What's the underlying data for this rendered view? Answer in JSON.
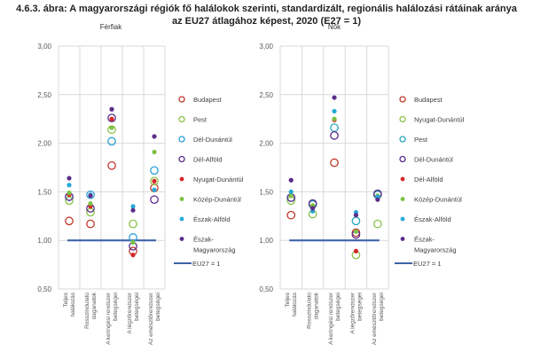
{
  "figure": {
    "title_line1": "4.6.3. ábra: A magyarországi régiók fő halálokok szerinti, standardizált, regionális halálozási rátáinak aránya",
    "title_line2": "az EU27 átlagához képest, 2020 (E27 = 1)"
  },
  "chart_data": [
    {
      "type": "scatter",
      "title": "Férfiak",
      "xlabel": "",
      "ylabel": "",
      "ylim": [
        0.5,
        3.0
      ],
      "yticks": [
        "0,50",
        "1,00",
        "1,50",
        "2,00",
        "2,50",
        "3,00"
      ],
      "ytick_values": [
        0.5,
        1.0,
        1.5,
        2.0,
        2.5,
        3.0
      ],
      "grid": true,
      "legend_position": "right",
      "categories": [
        "Teljes halálozás",
        "Rosszindulatú daganatok",
        "A keringési rendszer betegségei",
        "A légzőrendszer betegségei",
        "Az emésztőrendszer betegségei"
      ],
      "category_lines": [
        [
          "Teljes",
          "halálozás"
        ],
        [
          "Rosszindulatú",
          "daganatok"
        ],
        [
          "A keringési rendszer",
          "betegségei"
        ],
        [
          "A légzőrendszer",
          "betegségei"
        ],
        [
          "Az emésztőrendszer",
          "betegségei"
        ]
      ],
      "series": [
        {
          "name": "Budapest",
          "marker": "open",
          "color": "#c0392b",
          "values": [
            1.2,
            1.17,
            1.77,
            0.89,
            1.54
          ]
        },
        {
          "name": "Pest",
          "marker": "open",
          "color": "#8bc34a",
          "values": [
            1.41,
            1.29,
            2.14,
            1.17,
            1.61
          ]
        },
        {
          "name": "Dél-Dunántúl",
          "marker": "open",
          "color": "#2a9fd6",
          "values": [
            1.45,
            1.47,
            2.02,
            1.03,
            1.72
          ]
        },
        {
          "name": "Dél-Alföld",
          "marker": "open",
          "color": "#5b2d8a",
          "values": [
            1.45,
            1.33,
            2.26,
            0.94,
            1.42
          ]
        },
        {
          "name": "Nyugat-Dunántúl",
          "marker": "filled",
          "color": "#d62728",
          "values": [
            1.47,
            1.35,
            2.25,
            0.85,
            1.61
          ]
        },
        {
          "name": "Közép-Dunántúl",
          "marker": "filled",
          "color": "#7cc242",
          "values": [
            1.49,
            1.38,
            2.16,
            0.98,
            1.91
          ]
        },
        {
          "name": "Észak-Alföld",
          "marker": "filled",
          "color": "#27a9d8",
          "values": [
            1.57,
            1.47,
            null,
            1.35,
            1.52
          ]
        },
        {
          "name": "Észak-Magyarország",
          "marker": "filled",
          "color": "#5b2d8a",
          "values": [
            1.64,
            1.46,
            2.35,
            1.31,
            2.07
          ]
        }
      ],
      "reference_line": {
        "name": "EU27 = 1",
        "value": 1.0,
        "color": "#3e64a8"
      }
    },
    {
      "type": "scatter",
      "title": "Nők",
      "xlabel": "",
      "ylabel": "",
      "ylim": [
        0.5,
        3.0
      ],
      "yticks": [
        "0,50",
        "1,00",
        "1,50",
        "2,00",
        "2,50",
        "3,00"
      ],
      "ytick_values": [
        0.5,
        1.0,
        1.5,
        2.0,
        2.5,
        3.0
      ],
      "grid": true,
      "legend_position": "right",
      "categories": [
        "Teljes halálozás",
        "Rosszindulatú daganatok",
        "A keringési rendszer betegségei",
        "A légzőrendszer betegségei",
        "Az emésztőrendszer betegségei"
      ],
      "category_lines": [
        [
          "Teljes",
          "halálozás"
        ],
        [
          "Rosszindulatú",
          "daganatok"
        ],
        [
          "A keringési rendszer",
          "betegségei"
        ],
        [
          "A légzőrendszer",
          "betegségei"
        ],
        [
          "Az emésztőrendszer",
          "betegségei"
        ]
      ],
      "series": [
        {
          "name": "Budapest",
          "marker": "open",
          "color": "#c0392b",
          "values": [
            1.26,
            1.37,
            1.8,
            1.08,
            1.47
          ]
        },
        {
          "name": "Nyugat-Dunántúl",
          "marker": "open",
          "color": "#8bc34a",
          "values": [
            1.41,
            1.27,
            null,
            0.85,
            1.17
          ]
        },
        {
          "name": "Pest",
          "marker": "open",
          "color": "#26a6b8",
          "values": [
            1.44,
            1.37,
            2.16,
            1.2,
            1.47
          ]
        },
        {
          "name": "Dél-Dunántúl",
          "marker": "open",
          "color": "#5b2d8a",
          "values": [
            1.44,
            1.38,
            2.08,
            1.06,
            1.48
          ]
        },
        {
          "name": "Dél-Alföld",
          "marker": "filled",
          "color": "#d62728",
          "values": [
            1.46,
            1.34,
            2.24,
            0.89,
            1.45
          ]
        },
        {
          "name": "Közép-Dunántúl",
          "marker": "filled",
          "color": "#7cc242",
          "values": [
            1.46,
            1.36,
            2.25,
            1.09,
            1.46
          ]
        },
        {
          "name": "Észak-Alföld",
          "marker": "filled",
          "color": "#27a9d8",
          "values": [
            1.5,
            1.3,
            2.33,
            1.29,
            1.45
          ]
        },
        {
          "name": "Észak-Magyarország",
          "marker": "filled",
          "color": "#5b2d8a",
          "values": [
            1.62,
            1.33,
            2.47,
            1.26,
            1.42
          ]
        }
      ],
      "reference_line": {
        "name": "EU27 = 1",
        "value": 1.0,
        "color": "#3e64a8"
      }
    }
  ]
}
